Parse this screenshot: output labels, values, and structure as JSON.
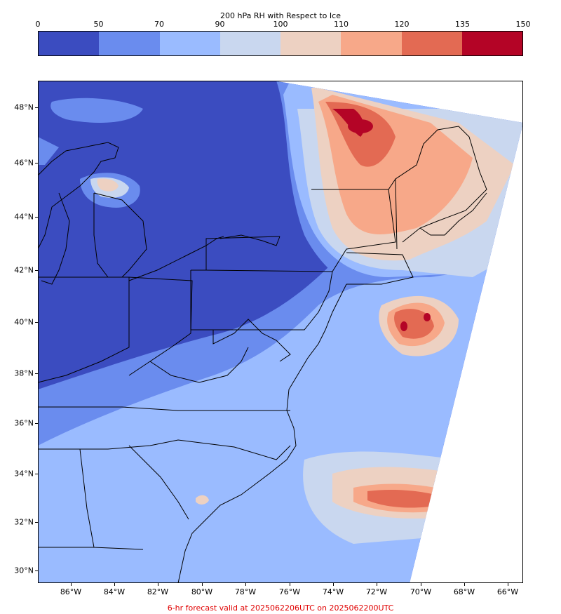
{
  "colorbar": {
    "title": "200 hPa RH with Respect to Ice",
    "ticks": [
      "0",
      "50",
      "70",
      "90",
      "100",
      "110",
      "120",
      "135",
      "150"
    ],
    "colors": [
      "#3b4cc0",
      "#6a8cee",
      "#9abbff",
      "#c9d7ef",
      "#edd1c2",
      "#f7a889",
      "#e36a53",
      "#b40426"
    ]
  },
  "map": {
    "lat_labels": [
      "48°N",
      "46°N",
      "44°N",
      "42°N",
      "40°N",
      "38°N",
      "36°N",
      "34°N",
      "32°N",
      "30°N"
    ],
    "lon_labels": [
      "86°W",
      "84°W",
      "82°W",
      "80°W",
      "78°W",
      "76°W",
      "74°W",
      "72°W",
      "70°W",
      "68°W",
      "66°W"
    ]
  },
  "footer": "6-hr forecast valid at 2025062206UTC on 2025062200UTC"
}
